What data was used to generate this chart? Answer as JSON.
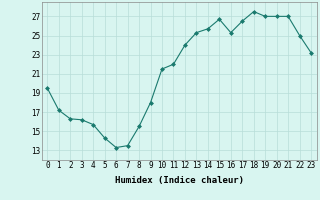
{
  "x": [
    0,
    1,
    2,
    3,
    4,
    5,
    6,
    7,
    8,
    9,
    10,
    11,
    12,
    13,
    14,
    15,
    16,
    17,
    18,
    19,
    20,
    21,
    22,
    23
  ],
  "y": [
    19.5,
    17.2,
    16.3,
    16.2,
    15.7,
    14.3,
    13.3,
    13.5,
    15.5,
    18.0,
    21.5,
    22.0,
    24.0,
    25.3,
    25.7,
    26.7,
    25.3,
    26.5,
    27.5,
    27.0,
    27.0,
    27.0,
    25.0,
    23.2
  ],
  "line_color": "#1a7a6e",
  "marker": "D",
  "marker_size": 2.0,
  "bg_color": "#d8f5f0",
  "grid_color": "#b8ddd8",
  "xlabel": "Humidex (Indice chaleur)",
  "xlim": [
    -0.5,
    23.5
  ],
  "ylim": [
    12,
    28.5
  ],
  "yticks": [
    13,
    15,
    17,
    19,
    21,
    23,
    25,
    27
  ],
  "xticks": [
    0,
    1,
    2,
    3,
    4,
    5,
    6,
    7,
    8,
    9,
    10,
    11,
    12,
    13,
    14,
    15,
    16,
    17,
    18,
    19,
    20,
    21,
    22,
    23
  ],
  "tick_fontsize": 5.5,
  "xlabel_fontsize": 6.5
}
